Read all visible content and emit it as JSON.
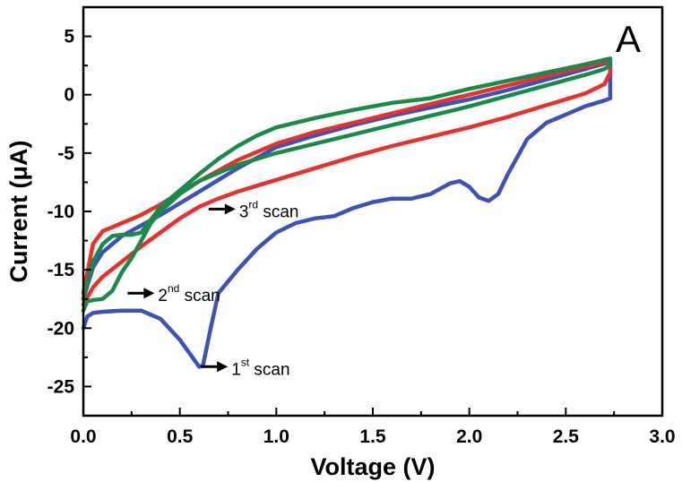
{
  "chart_data": {
    "type": "line",
    "panel_label": "A",
    "xlabel": "Voltage (V)",
    "ylabel": "Current (μA)",
    "xlim": [
      0.0,
      3.0
    ],
    "ylim": [
      -27.5,
      7.5
    ],
    "x_ticks": [
      0.0,
      0.5,
      1.0,
      1.5,
      2.0,
      2.5,
      3.0
    ],
    "x_tick_labels": [
      "0.0",
      "0.5",
      "1.0",
      "1.5",
      "2.0",
      "2.5",
      "3.0"
    ],
    "y_ticks": [
      5,
      0,
      -5,
      -10,
      -15,
      -20,
      -25
    ],
    "y_tick_labels": [
      "5",
      "0",
      "-5",
      "-10",
      "-15",
      "-20",
      "-25"
    ],
    "grid": false,
    "series": [
      {
        "color": "#3d52b8",
        "x": [
          0.0,
          0.02,
          0.05,
          0.1,
          0.2,
          0.3,
          0.4,
          0.5,
          0.6,
          0.62,
          0.66,
          0.7,
          0.8,
          0.9,
          1.0,
          1.1,
          1.2,
          1.3,
          1.4,
          1.5,
          1.6,
          1.7,
          1.8,
          1.9,
          1.95,
          2.0,
          2.05,
          2.1,
          2.15,
          2.2,
          2.3,
          2.4,
          2.5,
          2.6,
          2.7,
          2.73,
          2.73,
          2.6,
          2.4,
          2.2,
          2.0,
          1.8,
          1.6,
          1.4,
          1.2,
          1.0,
          0.8,
          0.6,
          0.4,
          0.3,
          0.2,
          0.1,
          0.05,
          0.0
        ],
        "y": [
          -20.0,
          -19.0,
          -18.7,
          -18.6,
          -18.5,
          -18.5,
          -19.2,
          -21.0,
          -23.3,
          -23.2,
          -20.0,
          -17.0,
          -15.0,
          -13.2,
          -11.8,
          -11.0,
          -10.6,
          -10.4,
          -9.7,
          -9.2,
          -8.9,
          -8.9,
          -8.5,
          -7.6,
          -7.4,
          -7.9,
          -8.8,
          -9.1,
          -8.5,
          -6.8,
          -3.8,
          -2.4,
          -1.7,
          -1.0,
          -0.5,
          -0.3,
          2.8,
          2.2,
          1.3,
          0.4,
          -0.4,
          -1.1,
          -1.8,
          -2.6,
          -3.5,
          -4.5,
          -6.3,
          -8.3,
          -10.3,
          -11.2,
          -12.1,
          -13.5,
          -14.8,
          -17.5
        ]
      },
      {
        "color": "#e8302c",
        "x": [
          0.0,
          0.05,
          0.1,
          0.2,
          0.3,
          0.4,
          0.5,
          0.6,
          0.7,
          0.8,
          0.9,
          1.0,
          1.2,
          1.4,
          1.6,
          1.8,
          2.0,
          2.2,
          2.4,
          2.6,
          2.7,
          2.73,
          2.73,
          2.6,
          2.4,
          2.2,
          2.0,
          1.8,
          1.6,
          1.4,
          1.2,
          1.0,
          0.8,
          0.6,
          0.5,
          0.4,
          0.3,
          0.2,
          0.1,
          0.05,
          0.0
        ],
        "y": [
          -18.0,
          -16.5,
          -15.6,
          -14.3,
          -13.0,
          -11.8,
          -10.6,
          -9.6,
          -8.9,
          -8.3,
          -7.8,
          -7.3,
          -6.3,
          -5.3,
          -4.4,
          -3.6,
          -2.8,
          -1.9,
          -0.9,
          0.1,
          0.9,
          1.9,
          2.9,
          2.4,
          1.6,
          0.8,
          0.0,
          -0.8,
          -1.6,
          -2.4,
          -3.2,
          -4.2,
          -5.6,
          -7.4,
          -8.4,
          -9.4,
          -10.3,
          -11.0,
          -11.7,
          -12.8,
          -17.0
        ]
      },
      {
        "color": "#1a8a48",
        "x": [
          0.0,
          0.02,
          0.05,
          0.1,
          0.15,
          0.2,
          0.25,
          0.3,
          0.35,
          0.4,
          0.5,
          0.6,
          0.7,
          0.8,
          0.9,
          1.0,
          1.2,
          1.4,
          1.6,
          1.8,
          2.0,
          2.2,
          2.4,
          2.6,
          2.7,
          2.73,
          2.73,
          2.6,
          2.4,
          2.2,
          2.0,
          1.8,
          1.6,
          1.4,
          1.2,
          1.0,
          0.9,
          0.8,
          0.7,
          0.6,
          0.5,
          0.4,
          0.35,
          0.3,
          0.25,
          0.2,
          0.15,
          0.1,
          0.05,
          0.0
        ],
        "y": [
          -18.5,
          -17.7,
          -17.6,
          -17.5,
          -16.8,
          -15.2,
          -14.0,
          -12.5,
          -11.0,
          -10.0,
          -8.5,
          -7.4,
          -6.7,
          -6.0,
          -5.5,
          -5.0,
          -4.2,
          -3.4,
          -2.6,
          -1.8,
          -1.0,
          -0.1,
          0.8,
          1.7,
          2.2,
          2.5,
          3.1,
          2.6,
          1.9,
          1.2,
          0.5,
          -0.3,
          -0.7,
          -1.3,
          -2.0,
          -2.8,
          -3.5,
          -4.4,
          -5.5,
          -6.8,
          -8.2,
          -9.6,
          -10.7,
          -11.8,
          -12.0,
          -12.0,
          -12.1,
          -12.8,
          -14.3,
          -17.5
        ]
      }
    ],
    "annotations": [
      {
        "text": "1",
        "sup": "st",
        "rest": " scan",
        "x": 0.6,
        "y": -23.3
      },
      {
        "text": "2",
        "sup": "nd",
        "rest": " scan",
        "x": 0.22,
        "y": -17.0
      },
      {
        "text": "3",
        "sup": "rd",
        "rest": " scan",
        "x": 0.64,
        "y": -9.8
      }
    ]
  }
}
